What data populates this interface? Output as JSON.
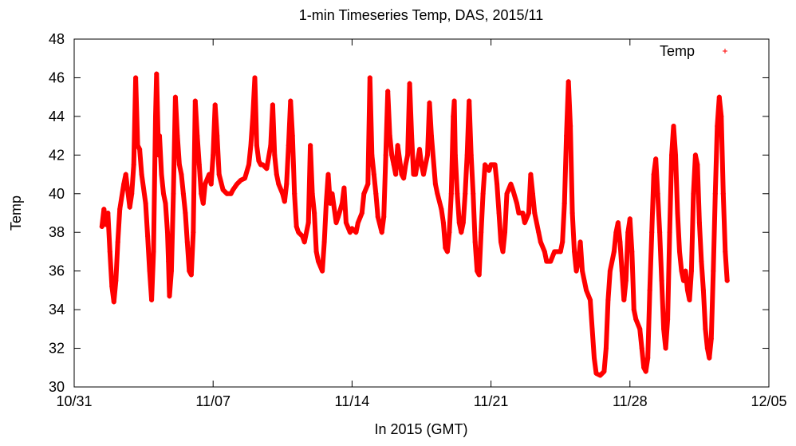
{
  "chart_data": {
    "type": "line",
    "title": "1-min Timeseries Temp, DAS, 2015/11",
    "xlabel": "In 2015 (GMT)",
    "ylabel": "Temp",
    "x_ticks": [
      "10/31",
      "11/07",
      "11/14",
      "11/21",
      "11/28",
      "12/05"
    ],
    "x_tick_days": [
      0,
      7,
      14,
      21,
      28,
      35
    ],
    "y_ticks": [
      30,
      32,
      34,
      36,
      38,
      40,
      42,
      44,
      46,
      48
    ],
    "xlim_days": [
      0,
      35
    ],
    "ylim": [
      30,
      48
    ],
    "legend_position": "top-right",
    "grid": false,
    "series": [
      {
        "name": "Temp",
        "color": "#ff0000",
        "marker": "+",
        "points": [
          [
            1.4,
            38.3
          ],
          [
            1.5,
            39.2
          ],
          [
            1.6,
            38.4
          ],
          [
            1.7,
            39.0
          ],
          [
            1.8,
            37.0
          ],
          [
            1.9,
            35.2
          ],
          [
            2.0,
            34.4
          ],
          [
            2.1,
            35.5
          ],
          [
            2.2,
            37.5
          ],
          [
            2.3,
            39.2
          ],
          [
            2.5,
            40.5
          ],
          [
            2.6,
            41.0
          ],
          [
            2.8,
            39.3
          ],
          [
            2.9,
            40.0
          ],
          [
            3.0,
            41.5
          ],
          [
            3.1,
            46.0
          ],
          [
            3.2,
            42.5
          ],
          [
            3.3,
            42.3
          ],
          [
            3.4,
            41.0
          ],
          [
            3.6,
            39.5
          ],
          [
            3.7,
            37.8
          ],
          [
            3.8,
            36.0
          ],
          [
            3.9,
            34.5
          ],
          [
            4.0,
            37.0
          ],
          [
            4.1,
            44.0
          ],
          [
            4.15,
            46.2
          ],
          [
            4.25,
            42.0
          ],
          [
            4.3,
            43.0
          ],
          [
            4.4,
            41.0
          ],
          [
            4.5,
            40.0
          ],
          [
            4.6,
            39.5
          ],
          [
            4.7,
            38.0
          ],
          [
            4.75,
            36.5
          ],
          [
            4.8,
            34.7
          ],
          [
            4.9,
            36.0
          ],
          [
            5.0,
            40.0
          ],
          [
            5.1,
            45.0
          ],
          [
            5.2,
            43.0
          ],
          [
            5.3,
            41.5
          ],
          [
            5.4,
            41.0
          ],
          [
            5.5,
            40.0
          ],
          [
            5.6,
            39.0
          ],
          [
            5.7,
            37.5
          ],
          [
            5.8,
            36.0
          ],
          [
            5.9,
            35.8
          ],
          [
            6.0,
            38.0
          ],
          [
            6.1,
            44.8
          ],
          [
            6.2,
            43.0
          ],
          [
            6.3,
            41.5
          ],
          [
            6.4,
            40.0
          ],
          [
            6.5,
            39.5
          ],
          [
            6.6,
            40.5
          ],
          [
            6.8,
            41.0
          ],
          [
            6.9,
            40.5
          ],
          [
            7.0,
            42.0
          ],
          [
            7.1,
            44.6
          ],
          [
            7.2,
            43.0
          ],
          [
            7.3,
            41.0
          ],
          [
            7.5,
            40.2
          ],
          [
            7.7,
            40.0
          ],
          [
            7.9,
            40.0
          ],
          [
            8.0,
            40.2
          ],
          [
            8.2,
            40.5
          ],
          [
            8.4,
            40.7
          ],
          [
            8.6,
            40.8
          ],
          [
            8.8,
            41.5
          ],
          [
            8.9,
            42.5
          ],
          [
            9.0,
            44.0
          ],
          [
            9.1,
            46.0
          ],
          [
            9.2,
            42.5
          ],
          [
            9.3,
            41.7
          ],
          [
            9.4,
            41.5
          ],
          [
            9.5,
            41.5
          ],
          [
            9.7,
            41.3
          ],
          [
            9.9,
            42.5
          ],
          [
            10.0,
            44.6
          ],
          [
            10.1,
            42.0
          ],
          [
            10.2,
            41.0
          ],
          [
            10.3,
            40.5
          ],
          [
            10.5,
            40.0
          ],
          [
            10.6,
            39.6
          ],
          [
            10.7,
            40.5
          ],
          [
            10.8,
            42.5
          ],
          [
            10.9,
            44.8
          ],
          [
            11.0,
            43.0
          ],
          [
            11.1,
            40.0
          ],
          [
            11.2,
            38.3
          ],
          [
            11.3,
            38.0
          ],
          [
            11.5,
            37.8
          ],
          [
            11.6,
            37.5
          ],
          [
            11.8,
            38.5
          ],
          [
            11.9,
            42.5
          ],
          [
            12.0,
            40.0
          ],
          [
            12.1,
            39.0
          ],
          [
            12.2,
            37.0
          ],
          [
            12.3,
            36.5
          ],
          [
            12.5,
            36.0
          ],
          [
            12.6,
            37.5
          ],
          [
            12.7,
            39.5
          ],
          [
            12.8,
            41.0
          ],
          [
            12.9,
            39.5
          ],
          [
            13.0,
            40.0
          ],
          [
            13.2,
            38.5
          ],
          [
            13.3,
            38.8
          ],
          [
            13.5,
            39.5
          ],
          [
            13.6,
            40.3
          ],
          [
            13.7,
            38.5
          ],
          [
            13.9,
            38.0
          ],
          [
            14.0,
            38.2
          ],
          [
            14.2,
            38.0
          ],
          [
            14.3,
            38.5
          ],
          [
            14.5,
            39.0
          ],
          [
            14.6,
            40.0
          ],
          [
            14.8,
            40.5
          ],
          [
            14.9,
            46.0
          ],
          [
            15.0,
            42.0
          ],
          [
            15.1,
            41.0
          ],
          [
            15.2,
            40.0
          ],
          [
            15.3,
            38.8
          ],
          [
            15.5,
            38.0
          ],
          [
            15.6,
            38.8
          ],
          [
            15.7,
            42.0
          ],
          [
            15.8,
            45.3
          ],
          [
            15.9,
            43.0
          ],
          [
            16.0,
            42.0
          ],
          [
            16.1,
            41.5
          ],
          [
            16.2,
            41.0
          ],
          [
            16.3,
            42.5
          ],
          [
            16.5,
            41.0
          ],
          [
            16.6,
            40.8
          ],
          [
            16.7,
            41.5
          ],
          [
            16.8,
            42.0
          ],
          [
            16.9,
            45.7
          ],
          [
            17.0,
            43.0
          ],
          [
            17.1,
            41.0
          ],
          [
            17.2,
            41.0
          ],
          [
            17.4,
            42.3
          ],
          [
            17.5,
            41.5
          ],
          [
            17.6,
            41.0
          ],
          [
            17.8,
            42.0
          ],
          [
            17.9,
            44.7
          ],
          [
            18.0,
            43.0
          ],
          [
            18.2,
            40.5
          ],
          [
            18.3,
            40.0
          ],
          [
            18.5,
            39.2
          ],
          [
            18.6,
            38.5
          ],
          [
            18.7,
            37.2
          ],
          [
            18.8,
            37.0
          ],
          [
            18.9,
            38.0
          ],
          [
            19.0,
            40.0
          ],
          [
            19.1,
            44.0
          ],
          [
            19.15,
            44.8
          ],
          [
            19.2,
            42.0
          ],
          [
            19.3,
            40.0
          ],
          [
            19.4,
            38.5
          ],
          [
            19.5,
            38.0
          ],
          [
            19.6,
            38.5
          ],
          [
            19.7,
            40.0
          ],
          [
            19.8,
            42.0
          ],
          [
            19.9,
            44.8
          ],
          [
            20.0,
            42.0
          ],
          [
            20.1,
            40.0
          ],
          [
            20.2,
            37.5
          ],
          [
            20.3,
            36.0
          ],
          [
            20.4,
            35.8
          ],
          [
            20.5,
            38.0
          ],
          [
            20.6,
            40.0
          ],
          [
            20.7,
            41.5
          ],
          [
            20.9,
            41.2
          ],
          [
            21.0,
            41.5
          ],
          [
            21.2,
            41.5
          ],
          [
            21.3,
            40.5
          ],
          [
            21.4,
            39.0
          ],
          [
            21.5,
            37.5
          ],
          [
            21.6,
            37.0
          ],
          [
            21.7,
            38.0
          ],
          [
            21.8,
            40.0
          ],
          [
            22.0,
            40.5
          ],
          [
            22.1,
            40.2
          ],
          [
            22.3,
            39.5
          ],
          [
            22.4,
            39.0
          ],
          [
            22.6,
            39.0
          ],
          [
            22.7,
            38.5
          ],
          [
            22.9,
            39.0
          ],
          [
            23.0,
            41.0
          ],
          [
            23.1,
            40.0
          ],
          [
            23.2,
            39.0
          ],
          [
            23.4,
            38.0
          ],
          [
            23.5,
            37.5
          ],
          [
            23.7,
            37.0
          ],
          [
            23.8,
            36.5
          ],
          [
            24.0,
            36.5
          ],
          [
            24.2,
            37.0
          ],
          [
            24.3,
            37.0
          ],
          [
            24.5,
            37.0
          ],
          [
            24.6,
            37.5
          ],
          [
            24.7,
            39.5
          ],
          [
            24.8,
            43.0
          ],
          [
            24.9,
            45.8
          ],
          [
            25.0,
            43.5
          ],
          [
            25.1,
            39.0
          ],
          [
            25.2,
            37.0
          ],
          [
            25.3,
            36.0
          ],
          [
            25.4,
            36.5
          ],
          [
            25.5,
            37.5
          ],
          [
            25.6,
            36.0
          ],
          [
            25.7,
            35.5
          ],
          [
            25.8,
            35.0
          ],
          [
            26.0,
            34.5
          ],
          [
            26.1,
            33.0
          ],
          [
            26.2,
            31.5
          ],
          [
            26.3,
            30.7
          ],
          [
            26.5,
            30.6
          ],
          [
            26.7,
            30.8
          ],
          [
            26.8,
            32.0
          ],
          [
            26.9,
            34.5
          ],
          [
            27.0,
            36.0
          ],
          [
            27.2,
            37.0
          ],
          [
            27.3,
            38.0
          ],
          [
            27.4,
            38.5
          ],
          [
            27.5,
            37.5
          ],
          [
            27.6,
            36.0
          ],
          [
            27.7,
            34.5
          ],
          [
            27.8,
            35.5
          ],
          [
            27.9,
            38.0
          ],
          [
            28.0,
            38.7
          ],
          [
            28.1,
            37.0
          ],
          [
            28.2,
            34.0
          ],
          [
            28.3,
            33.5
          ],
          [
            28.5,
            33.0
          ],
          [
            28.6,
            32.0
          ],
          [
            28.7,
            31.0
          ],
          [
            28.8,
            30.8
          ],
          [
            28.9,
            31.5
          ],
          [
            29.0,
            35.0
          ],
          [
            29.1,
            38.0
          ],
          [
            29.2,
            41.0
          ],
          [
            29.3,
            41.8
          ],
          [
            29.4,
            40.0
          ],
          [
            29.5,
            38.0
          ],
          [
            29.6,
            35.5
          ],
          [
            29.7,
            33.0
          ],
          [
            29.8,
            32.0
          ],
          [
            29.9,
            33.5
          ],
          [
            30.0,
            38.0
          ],
          [
            30.1,
            42.0
          ],
          [
            30.2,
            43.5
          ],
          [
            30.3,
            42.0
          ],
          [
            30.4,
            39.0
          ],
          [
            30.5,
            37.0
          ],
          [
            30.6,
            36.0
          ],
          [
            30.7,
            35.5
          ],
          [
            30.8,
            36.0
          ],
          [
            30.9,
            35.0
          ],
          [
            31.0,
            34.5
          ],
          [
            31.1,
            36.0
          ],
          [
            31.2,
            40.0
          ],
          [
            31.3,
            42.0
          ],
          [
            31.4,
            41.5
          ],
          [
            31.5,
            38.5
          ],
          [
            31.6,
            36.5
          ],
          [
            31.7,
            35.0
          ],
          [
            31.8,
            33.0
          ],
          [
            31.9,
            32.0
          ],
          [
            32.0,
            31.5
          ],
          [
            32.1,
            32.5
          ],
          [
            32.2,
            36.0
          ],
          [
            32.3,
            40.0
          ],
          [
            32.4,
            43.5
          ],
          [
            32.5,
            45.0
          ],
          [
            32.6,
            44.0
          ],
          [
            32.7,
            40.0
          ],
          [
            32.8,
            37.0
          ],
          [
            32.9,
            35.5
          ]
        ]
      }
    ]
  }
}
